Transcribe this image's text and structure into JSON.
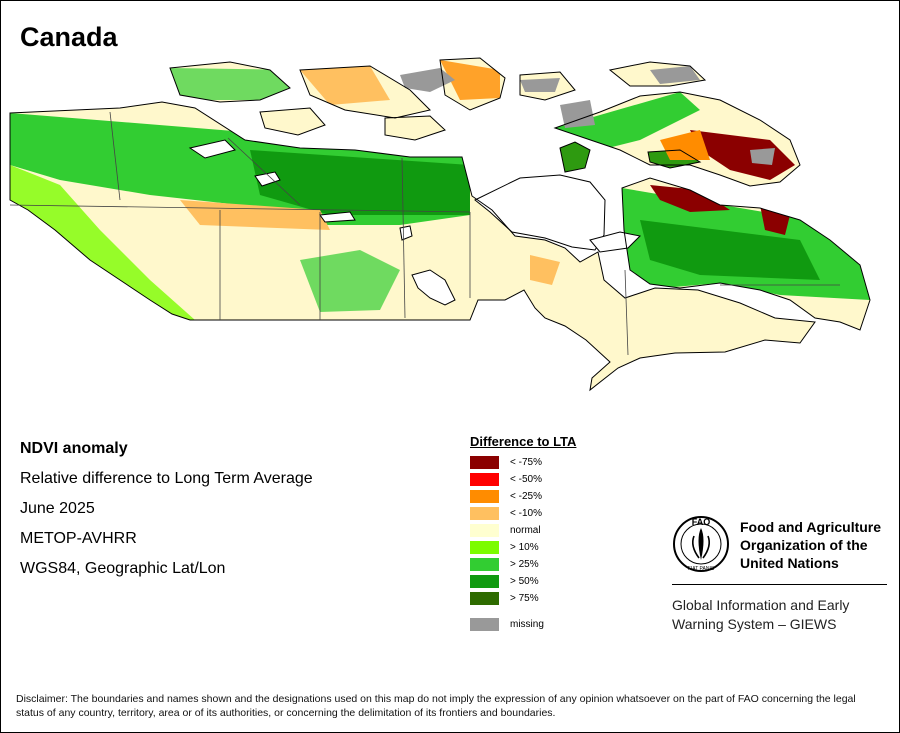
{
  "title": "Canada",
  "info": {
    "heading": "NDVI anomaly",
    "line1": "Relative difference to Long Term Average",
    "date": "June 2025",
    "sensor": "METOP-AVHRR",
    "projection": "WGS84, Geographic Lat/Lon"
  },
  "legend": {
    "title": "Difference to LTA",
    "items": [
      {
        "label": "< -75%",
        "color": "#8b0000"
      },
      {
        "label": "< -50%",
        "color": "#ff0000"
      },
      {
        "label": "< -25%",
        "color": "#ff8c00"
      },
      {
        "label": "< -10%",
        "color": "#ffc060"
      },
      {
        "label": "normal",
        "color": "#ffffd0"
      },
      {
        "label": "> 10%",
        "color": "#7cfc00"
      },
      {
        "label": "> 25%",
        "color": "#32cd32"
      },
      {
        "label": "> 50%",
        "color": "#109a10"
      },
      {
        "label": "> 75%",
        "color": "#2e6b00"
      }
    ],
    "missing": {
      "label": "missing",
      "color": "#999999"
    }
  },
  "fao": {
    "logo_text_top": "FAO",
    "logo_text_bottom": "FIAT PANIS",
    "name_line1": "Food and Agriculture",
    "name_line2": "Organization of the",
    "name_line3": "United Nations"
  },
  "giews": {
    "line1": "Global Information and Early",
    "line2": "Warning System – GIEWS"
  },
  "disclaimer": "Disclaimer: The boundaries and names shown and the designations used on this map do not imply the expression of any opinion whatsoever on the part of FAO concerning the legal status of any country, territory, area or of its authorities, or concerning the delimitation of its frontiers and boundaries."
}
